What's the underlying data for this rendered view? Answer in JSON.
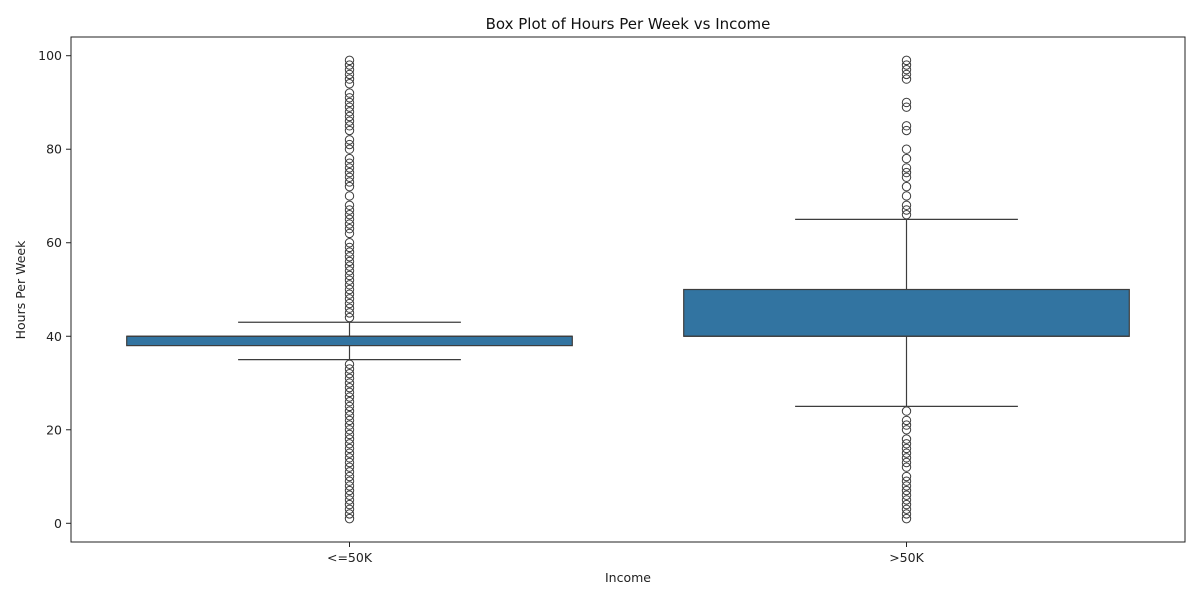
{
  "chart_data": {
    "type": "box",
    "title": "Box Plot of Hours Per Week vs Income",
    "xlabel": "Income",
    "ylabel": "Hours Per Week",
    "ylim": [
      -4,
      104
    ],
    "yticks": [
      0,
      20,
      40,
      60,
      80,
      100
    ],
    "categories": [
      "<=50K",
      ">50K"
    ],
    "grid": false,
    "box_color": "#3274a1",
    "line_color": "#3d3d3d",
    "boxes": [
      {
        "category": "<=50K",
        "whisker_low": 35,
        "q1": 38,
        "median": 40,
        "q3": 40,
        "whisker_high": 43,
        "outliers": [
          1,
          2,
          3,
          4,
          5,
          6,
          7,
          8,
          9,
          10,
          11,
          12,
          13,
          14,
          15,
          16,
          17,
          18,
          19,
          20,
          21,
          22,
          23,
          24,
          25,
          26,
          27,
          28,
          29,
          30,
          31,
          32,
          33,
          34,
          44,
          45,
          46,
          47,
          48,
          49,
          50,
          51,
          52,
          53,
          54,
          55,
          56,
          57,
          58,
          59,
          60,
          62,
          63,
          64,
          65,
          66,
          67,
          68,
          70,
          72,
          73,
          74,
          75,
          76,
          77,
          78,
          80,
          81,
          82,
          84,
          85,
          86,
          87,
          88,
          89,
          90,
          91,
          92,
          94,
          95,
          96,
          97,
          98,
          99
        ]
      },
      {
        "category": ">50K",
        "whisker_low": 25,
        "q1": 40,
        "median": 40,
        "q3": 50,
        "whisker_high": 65,
        "outliers": [
          1,
          2,
          3,
          4,
          5,
          6,
          7,
          8,
          9,
          10,
          12,
          13,
          14,
          15,
          16,
          17,
          18,
          20,
          21,
          22,
          24,
          66,
          67,
          68,
          70,
          72,
          74,
          75,
          76,
          78,
          80,
          84,
          85,
          89,
          90,
          95,
          96,
          97,
          98,
          99
        ]
      }
    ]
  }
}
